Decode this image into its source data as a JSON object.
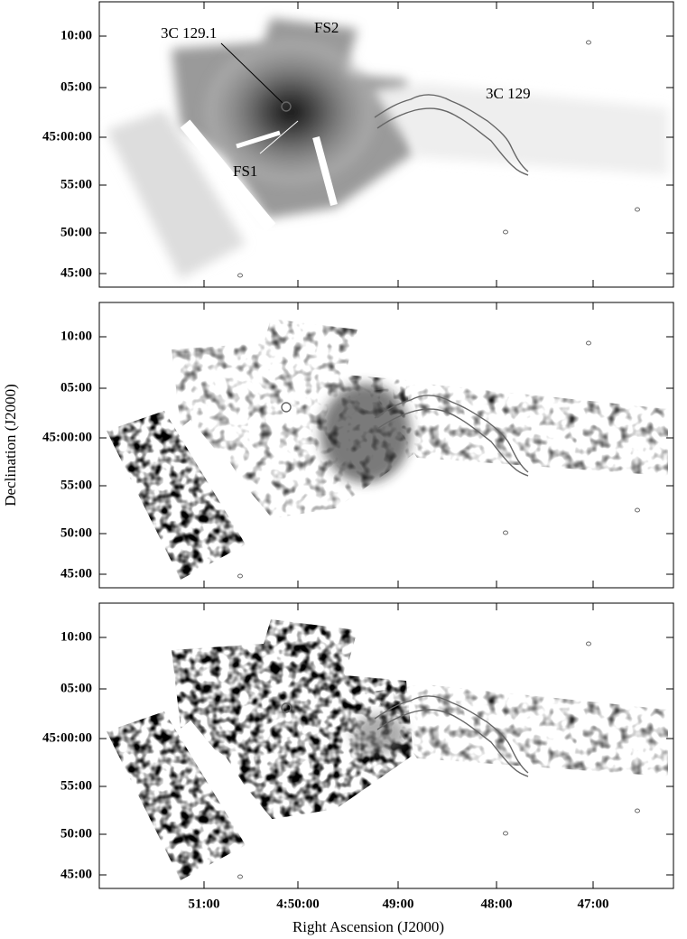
{
  "figure": {
    "y_axis_label": "Declination (J2000)",
    "x_axis_label": "Right Ascension (J2000)",
    "x_ticks": [
      "51:00",
      "4:50:00",
      "49:00",
      "48:00",
      "47:00"
    ],
    "y_ticks": [
      "10:00",
      "05:00",
      "45:00:00",
      "55:00",
      "50:00",
      "45:00"
    ],
    "annotations": [
      "3C 129.1",
      "FS2",
      "3C 129",
      "FS1"
    ]
  }
}
